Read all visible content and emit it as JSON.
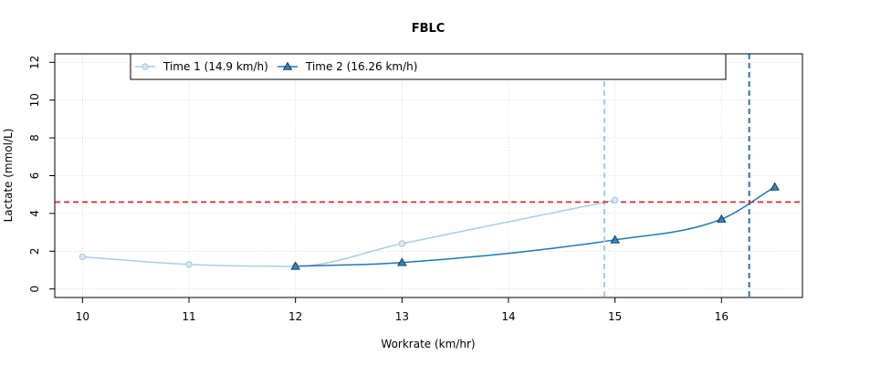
{
  "chart_data": {
    "type": "line",
    "title": "FBLC",
    "xlabel": "Workrate (km/hr)",
    "ylabel": "Lactate (mmol/L)",
    "xlim": [
      9.74,
      16.76
    ],
    "ylim": [
      -0.45,
      12.45
    ],
    "xticks": [
      10,
      11,
      12,
      13,
      14,
      15,
      16
    ],
    "yticks": [
      0,
      2,
      4,
      6,
      8,
      10,
      12
    ],
    "grid": true,
    "legend_position": "top",
    "threshold": {
      "value": 4.6,
      "color": "#e31a1c"
    },
    "series": [
      {
        "name": "Time 1 (14.9 km/h)",
        "color": "#a6cee3",
        "marker": "circle",
        "threshold_x": 14.9,
        "x": [
          10,
          11,
          12,
          13,
          15
        ],
        "y": [
          1.7,
          1.3,
          1.2,
          2.4,
          4.7
        ]
      },
      {
        "name": "Time 2 (16.26 km/h)",
        "color": "#1f78b4",
        "marker": "triangle",
        "threshold_x": 16.26,
        "x": [
          12,
          13,
          15,
          16,
          16.5
        ],
        "y": [
          1.2,
          1.4,
          2.6,
          3.7,
          5.4
        ]
      }
    ]
  }
}
